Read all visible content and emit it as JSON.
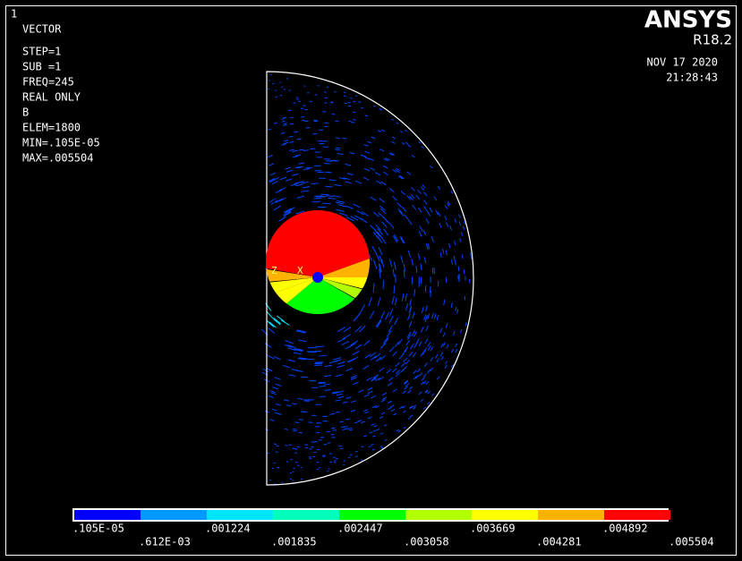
{
  "window_number": "1",
  "info": [
    "VECTOR",
    "STEP=1",
    "SUB =1",
    "FREQ=245",
    "REAL ONLY",
    "B",
    "ELEM=1800",
    "MIN=.105E-05",
    "MAX=.005504"
  ],
  "logo": {
    "title": "ANSYS",
    "release": "R18.2"
  },
  "date": "NOV 17 2020",
  "time": "21:28:43",
  "triad": {
    "z": "Z",
    "x": "X"
  },
  "legend": {
    "colors": [
      "#0000ff",
      "#0099ff",
      "#00e5ff",
      "#00ffbb",
      "#00ff00",
      "#b2ff00",
      "#ffff00",
      "#ffb200",
      "#ff0000"
    ],
    "labels": [
      ".105E-05",
      ".612E-03",
      ".001224",
      ".001835",
      ".002447",
      ".003058",
      ".003669",
      ".004281",
      ".004892",
      ".005504"
    ]
  }
}
